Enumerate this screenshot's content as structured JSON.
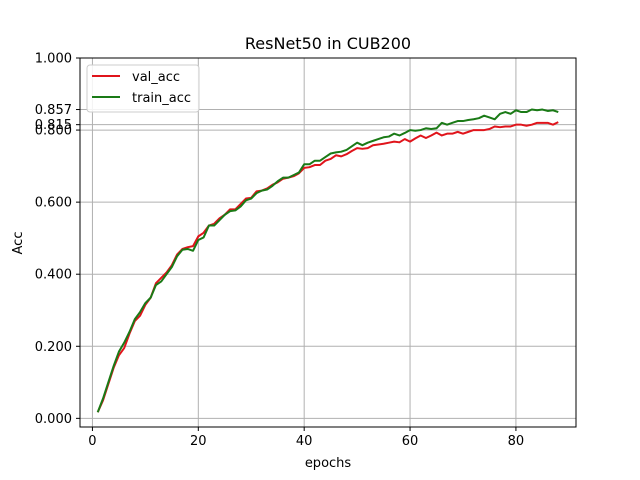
{
  "chart_data": {
    "type": "line",
    "title": "ResNet50 in CUB200",
    "xlabel": "epochs",
    "ylabel": "Acc",
    "xlim": [
      -2.35,
      91.35
    ],
    "ylim": [
      -0.024,
      1.0
    ],
    "xticks": [
      "0",
      "20",
      "40",
      "60",
      "80"
    ],
    "xtick_values": [
      0,
      20,
      40,
      60,
      80
    ],
    "yticks": [
      "0.000",
      "0.200",
      "0.400",
      "0.600",
      "0.800",
      "0.815",
      "0.857",
      "1.000"
    ],
    "ytick_values": [
      0.0,
      0.2,
      0.4,
      0.6,
      0.8,
      0.815,
      0.857,
      1.0
    ],
    "grid": true,
    "legend_position": "top-left",
    "series": [
      {
        "name": "val_acc",
        "color": "#e0141b",
        "x": [
          1,
          2,
          3,
          4,
          5,
          6,
          7,
          8,
          9,
          10,
          11,
          12,
          13,
          14,
          15,
          16,
          17,
          18,
          19,
          20,
          21,
          22,
          23,
          24,
          25,
          26,
          27,
          28,
          29,
          30,
          31,
          32,
          33,
          34,
          35,
          36,
          37,
          38,
          39,
          40,
          41,
          42,
          43,
          44,
          45,
          46,
          47,
          48,
          49,
          50,
          51,
          52,
          53,
          54,
          55,
          56,
          57,
          58,
          59,
          60,
          61,
          62,
          63,
          64,
          65,
          66,
          67,
          68,
          69,
          70,
          71,
          72,
          73,
          74,
          75,
          76,
          77,
          78,
          79,
          80,
          81,
          82,
          83,
          84,
          85,
          86,
          87,
          88
        ],
        "values": [
          0.017,
          0.05,
          0.095,
          0.14,
          0.175,
          0.195,
          0.235,
          0.27,
          0.285,
          0.315,
          0.335,
          0.375,
          0.39,
          0.405,
          0.425,
          0.455,
          0.47,
          0.475,
          0.478,
          0.505,
          0.515,
          0.535,
          0.54,
          0.555,
          0.565,
          0.58,
          0.58,
          0.595,
          0.61,
          0.612,
          0.63,
          0.632,
          0.638,
          0.648,
          0.655,
          0.665,
          0.668,
          0.672,
          0.68,
          0.695,
          0.697,
          0.703,
          0.703,
          0.715,
          0.72,
          0.73,
          0.727,
          0.733,
          0.742,
          0.75,
          0.748,
          0.75,
          0.758,
          0.76,
          0.762,
          0.765,
          0.768,
          0.766,
          0.775,
          0.768,
          0.777,
          0.785,
          0.778,
          0.785,
          0.793,
          0.785,
          0.79,
          0.79,
          0.795,
          0.79,
          0.795,
          0.8,
          0.8,
          0.8,
          0.803,
          0.81,
          0.808,
          0.81,
          0.81,
          0.815,
          0.815,
          0.812,
          0.815,
          0.82,
          0.82,
          0.82,
          0.815,
          0.822
        ]
      },
      {
        "name": "train_acc",
        "color": "#1a7a16",
        "x": [
          1,
          2,
          3,
          4,
          5,
          6,
          7,
          8,
          9,
          10,
          11,
          12,
          13,
          14,
          15,
          16,
          17,
          18,
          19,
          20,
          21,
          22,
          23,
          24,
          25,
          26,
          27,
          28,
          29,
          30,
          31,
          32,
          33,
          34,
          35,
          36,
          37,
          38,
          39,
          40,
          41,
          42,
          43,
          44,
          45,
          46,
          47,
          48,
          49,
          50,
          51,
          52,
          53,
          54,
          55,
          56,
          57,
          58,
          59,
          60,
          61,
          62,
          63,
          64,
          65,
          66,
          67,
          68,
          69,
          70,
          71,
          72,
          73,
          74,
          75,
          76,
          77,
          78,
          79,
          80,
          81,
          82,
          83,
          84,
          85,
          86,
          87,
          88
        ],
        "values": [
          0.017,
          0.055,
          0.1,
          0.145,
          0.185,
          0.21,
          0.24,
          0.275,
          0.295,
          0.32,
          0.335,
          0.37,
          0.38,
          0.4,
          0.42,
          0.45,
          0.468,
          0.47,
          0.465,
          0.495,
          0.502,
          0.535,
          0.535,
          0.55,
          0.565,
          0.575,
          0.577,
          0.588,
          0.605,
          0.61,
          0.625,
          0.632,
          0.635,
          0.645,
          0.658,
          0.668,
          0.668,
          0.675,
          0.682,
          0.705,
          0.705,
          0.715,
          0.715,
          0.725,
          0.735,
          0.738,
          0.74,
          0.745,
          0.755,
          0.765,
          0.758,
          0.765,
          0.77,
          0.775,
          0.78,
          0.782,
          0.79,
          0.785,
          0.792,
          0.8,
          0.798,
          0.8,
          0.805,
          0.803,
          0.805,
          0.82,
          0.815,
          0.82,
          0.825,
          0.825,
          0.828,
          0.83,
          0.833,
          0.84,
          0.835,
          0.83,
          0.845,
          0.85,
          0.845,
          0.855,
          0.85,
          0.85,
          0.857,
          0.855,
          0.857,
          0.853,
          0.855,
          0.85
        ]
      }
    ]
  }
}
